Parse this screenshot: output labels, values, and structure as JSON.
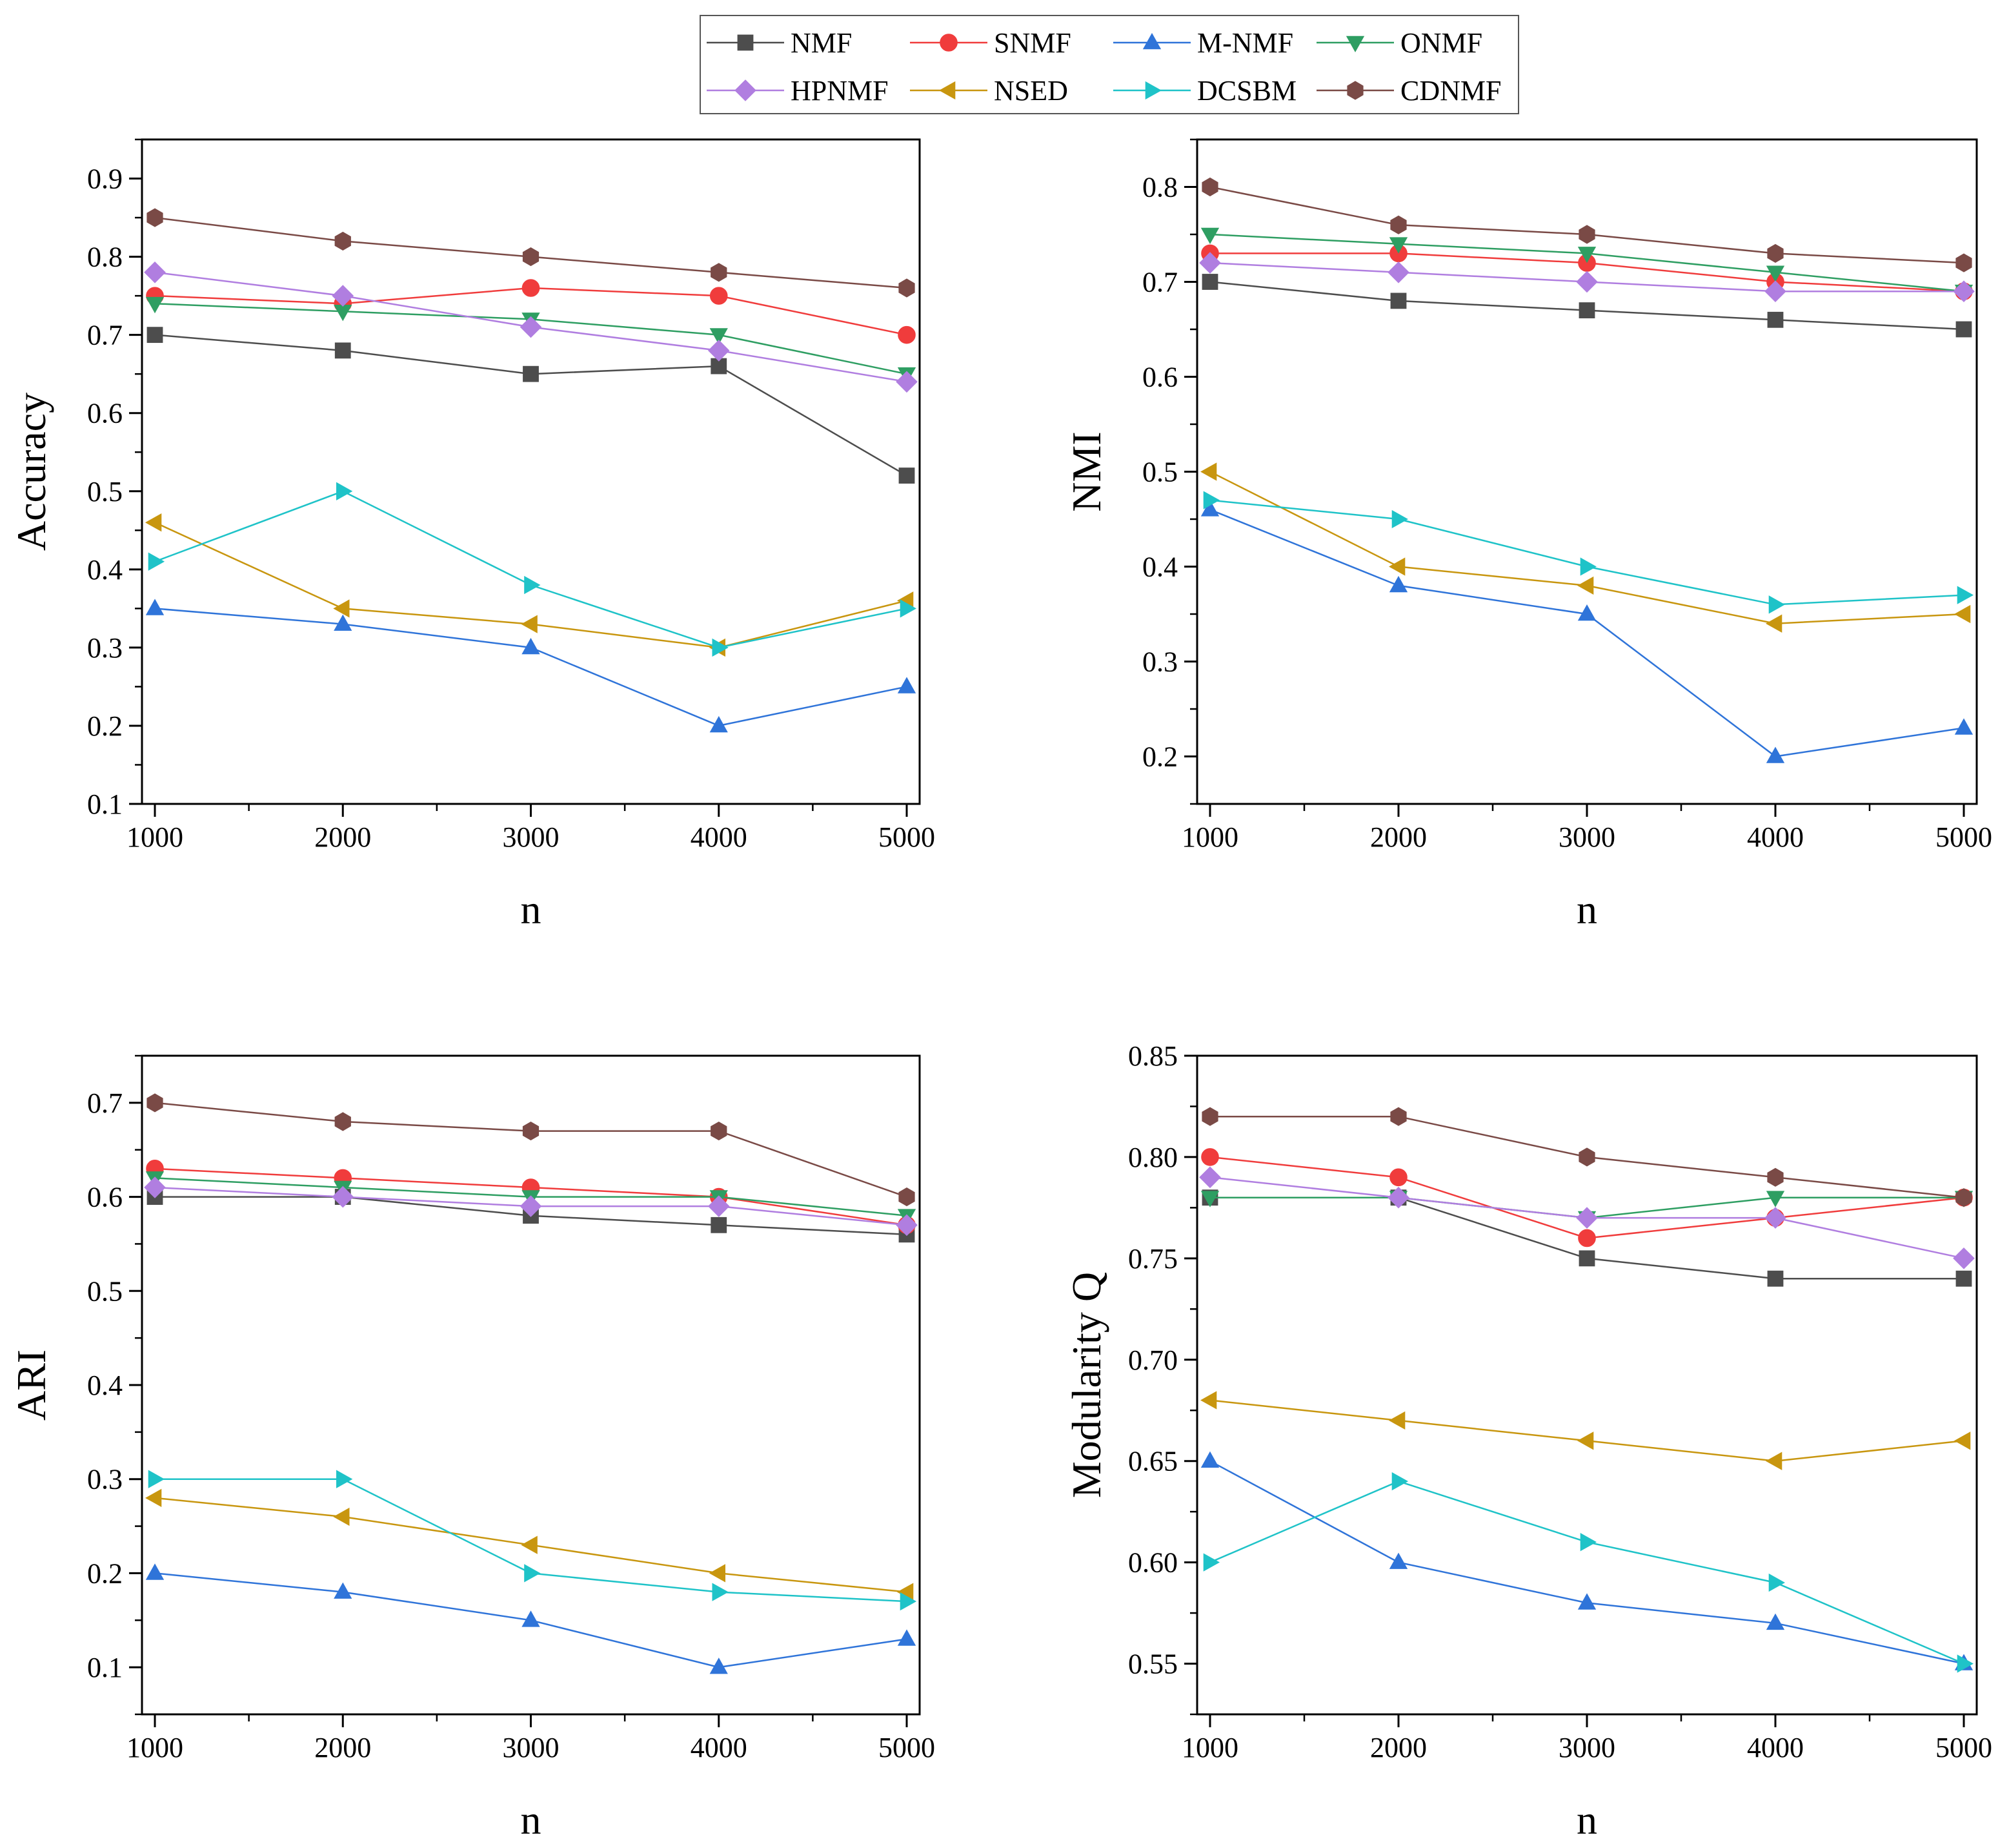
{
  "legend": {
    "entries": [
      {
        "name": "NMF",
        "color": "#4d4d4d",
        "marker": "square"
      },
      {
        "name": "SNMF",
        "color": "#f03c3c",
        "marker": "circle"
      },
      {
        "name": "M-NMF",
        "color": "#2f74d9",
        "marker": "triangle-up"
      },
      {
        "name": "ONMF",
        "color": "#2e9e62",
        "marker": "triangle-down"
      },
      {
        "name": "HPNMF",
        "color": "#b07ee0",
        "marker": "diamond"
      },
      {
        "name": "NSED",
        "color": "#c8960f",
        "marker": "triangle-left"
      },
      {
        "name": "DCSBM",
        "color": "#1fc3c8",
        "marker": "triangle-right"
      },
      {
        "name": "CDNMF",
        "color": "#7a4a46",
        "marker": "hexagon"
      }
    ]
  },
  "chart_data": [
    {
      "type": "line",
      "xlabel": "n",
      "ylabel": "Accuracy",
      "x": [
        1000,
        2000,
        3000,
        4000,
        5000
      ],
      "xticks": [
        "1000",
        "2000",
        "3000",
        "4000",
        "5000"
      ],
      "ylim": [
        0.1,
        0.95
      ],
      "yticks": [
        "0.1",
        "0.2",
        "0.3",
        "0.4",
        "0.5",
        "0.6",
        "0.7",
        "0.8",
        "0.9"
      ],
      "series": [
        {
          "name": "NMF",
          "values": [
            0.7,
            0.68,
            0.65,
            0.66,
            0.52
          ]
        },
        {
          "name": "SNMF",
          "values": [
            0.75,
            0.74,
            0.76,
            0.75,
            0.7
          ]
        },
        {
          "name": "M-NMF",
          "values": [
            0.35,
            0.33,
            0.3,
            0.2,
            0.25
          ]
        },
        {
          "name": "ONMF",
          "values": [
            0.74,
            0.73,
            0.72,
            0.7,
            0.65
          ]
        },
        {
          "name": "HPNMF",
          "values": [
            0.78,
            0.75,
            0.71,
            0.68,
            0.64
          ]
        },
        {
          "name": "NSED",
          "values": [
            0.46,
            0.35,
            0.33,
            0.3,
            0.36
          ]
        },
        {
          "name": "DCSBM",
          "values": [
            0.41,
            0.5,
            0.38,
            0.3,
            0.35
          ]
        },
        {
          "name": "CDNMF",
          "values": [
            0.85,
            0.82,
            0.8,
            0.78,
            0.76
          ]
        }
      ]
    },
    {
      "type": "line",
      "xlabel": "n",
      "ylabel": "NMI",
      "x": [
        1000,
        2000,
        3000,
        4000,
        5000
      ],
      "xticks": [
        "1000",
        "2000",
        "3000",
        "4000",
        "5000"
      ],
      "ylim": [
        0.15,
        0.85
      ],
      "yticks": [
        "0.2",
        "0.3",
        "0.4",
        "0.5",
        "0.6",
        "0.7",
        "0.8"
      ],
      "series": [
        {
          "name": "NMF",
          "values": [
            0.7,
            0.68,
            0.67,
            0.66,
            0.65
          ]
        },
        {
          "name": "SNMF",
          "values": [
            0.73,
            0.73,
            0.72,
            0.7,
            0.69
          ]
        },
        {
          "name": "M-NMF",
          "values": [
            0.46,
            0.38,
            0.35,
            0.2,
            0.23
          ]
        },
        {
          "name": "ONMF",
          "values": [
            0.75,
            0.74,
            0.73,
            0.71,
            0.69
          ]
        },
        {
          "name": "HPNMF",
          "values": [
            0.72,
            0.71,
            0.7,
            0.69,
            0.69
          ]
        },
        {
          "name": "NSED",
          "values": [
            0.5,
            0.4,
            0.38,
            0.34,
            0.35
          ]
        },
        {
          "name": "DCSBM",
          "values": [
            0.47,
            0.45,
            0.4,
            0.36,
            0.37
          ]
        },
        {
          "name": "CDNMF",
          "values": [
            0.8,
            0.76,
            0.75,
            0.73,
            0.72
          ]
        }
      ]
    },
    {
      "type": "line",
      "xlabel": "n",
      "ylabel": "ARI",
      "x": [
        1000,
        2000,
        3000,
        4000,
        5000
      ],
      "xticks": [
        "1000",
        "2000",
        "3000",
        "4000",
        "5000"
      ],
      "ylim": [
        0.05,
        0.75
      ],
      "yticks": [
        "0.1",
        "0.2",
        "0.3",
        "0.4",
        "0.5",
        "0.6",
        "0.7"
      ],
      "series": [
        {
          "name": "NMF",
          "values": [
            0.6,
            0.6,
            0.58,
            0.57,
            0.56
          ]
        },
        {
          "name": "SNMF",
          "values": [
            0.63,
            0.62,
            0.61,
            0.6,
            0.57
          ]
        },
        {
          "name": "M-NMF",
          "values": [
            0.2,
            0.18,
            0.15,
            0.1,
            0.13
          ]
        },
        {
          "name": "ONMF",
          "values": [
            0.62,
            0.61,
            0.6,
            0.6,
            0.58
          ]
        },
        {
          "name": "HPNMF",
          "values": [
            0.61,
            0.6,
            0.59,
            0.59,
            0.57
          ]
        },
        {
          "name": "NSED",
          "values": [
            0.28,
            0.26,
            0.23,
            0.2,
            0.18
          ]
        },
        {
          "name": "DCSBM",
          "values": [
            0.3,
            0.3,
            0.2,
            0.18,
            0.17
          ]
        },
        {
          "name": "CDNMF",
          "values": [
            0.7,
            0.68,
            0.67,
            0.67,
            0.6
          ]
        }
      ]
    },
    {
      "type": "line",
      "xlabel": "n",
      "ylabel": "Modularity Q",
      "x": [
        1000,
        2000,
        3000,
        4000,
        5000
      ],
      "xticks": [
        "1000",
        "2000",
        "3000",
        "4000",
        "5000"
      ],
      "ylim": [
        0.525,
        0.85
      ],
      "yticks": [
        "0.55",
        "0.60",
        "0.65",
        "0.70",
        "0.75",
        "0.80",
        "0.85"
      ],
      "series": [
        {
          "name": "NMF",
          "values": [
            0.78,
            0.78,
            0.75,
            0.74,
            0.74
          ]
        },
        {
          "name": "SNMF",
          "values": [
            0.8,
            0.79,
            0.76,
            0.77,
            0.78
          ]
        },
        {
          "name": "M-NMF",
          "values": [
            0.65,
            0.6,
            0.58,
            0.57,
            0.55
          ]
        },
        {
          "name": "ONMF",
          "values": [
            0.78,
            0.78,
            0.77,
            0.78,
            0.78
          ]
        },
        {
          "name": "HPNMF",
          "values": [
            0.79,
            0.78,
            0.77,
            0.77,
            0.75
          ]
        },
        {
          "name": "NSED",
          "values": [
            0.68,
            0.67,
            0.66,
            0.65,
            0.66
          ]
        },
        {
          "name": "DCSBM",
          "values": [
            0.6,
            0.64,
            0.61,
            0.59,
            0.55
          ]
        },
        {
          "name": "CDNMF",
          "values": [
            0.82,
            0.82,
            0.8,
            0.79,
            0.78
          ]
        }
      ]
    }
  ]
}
